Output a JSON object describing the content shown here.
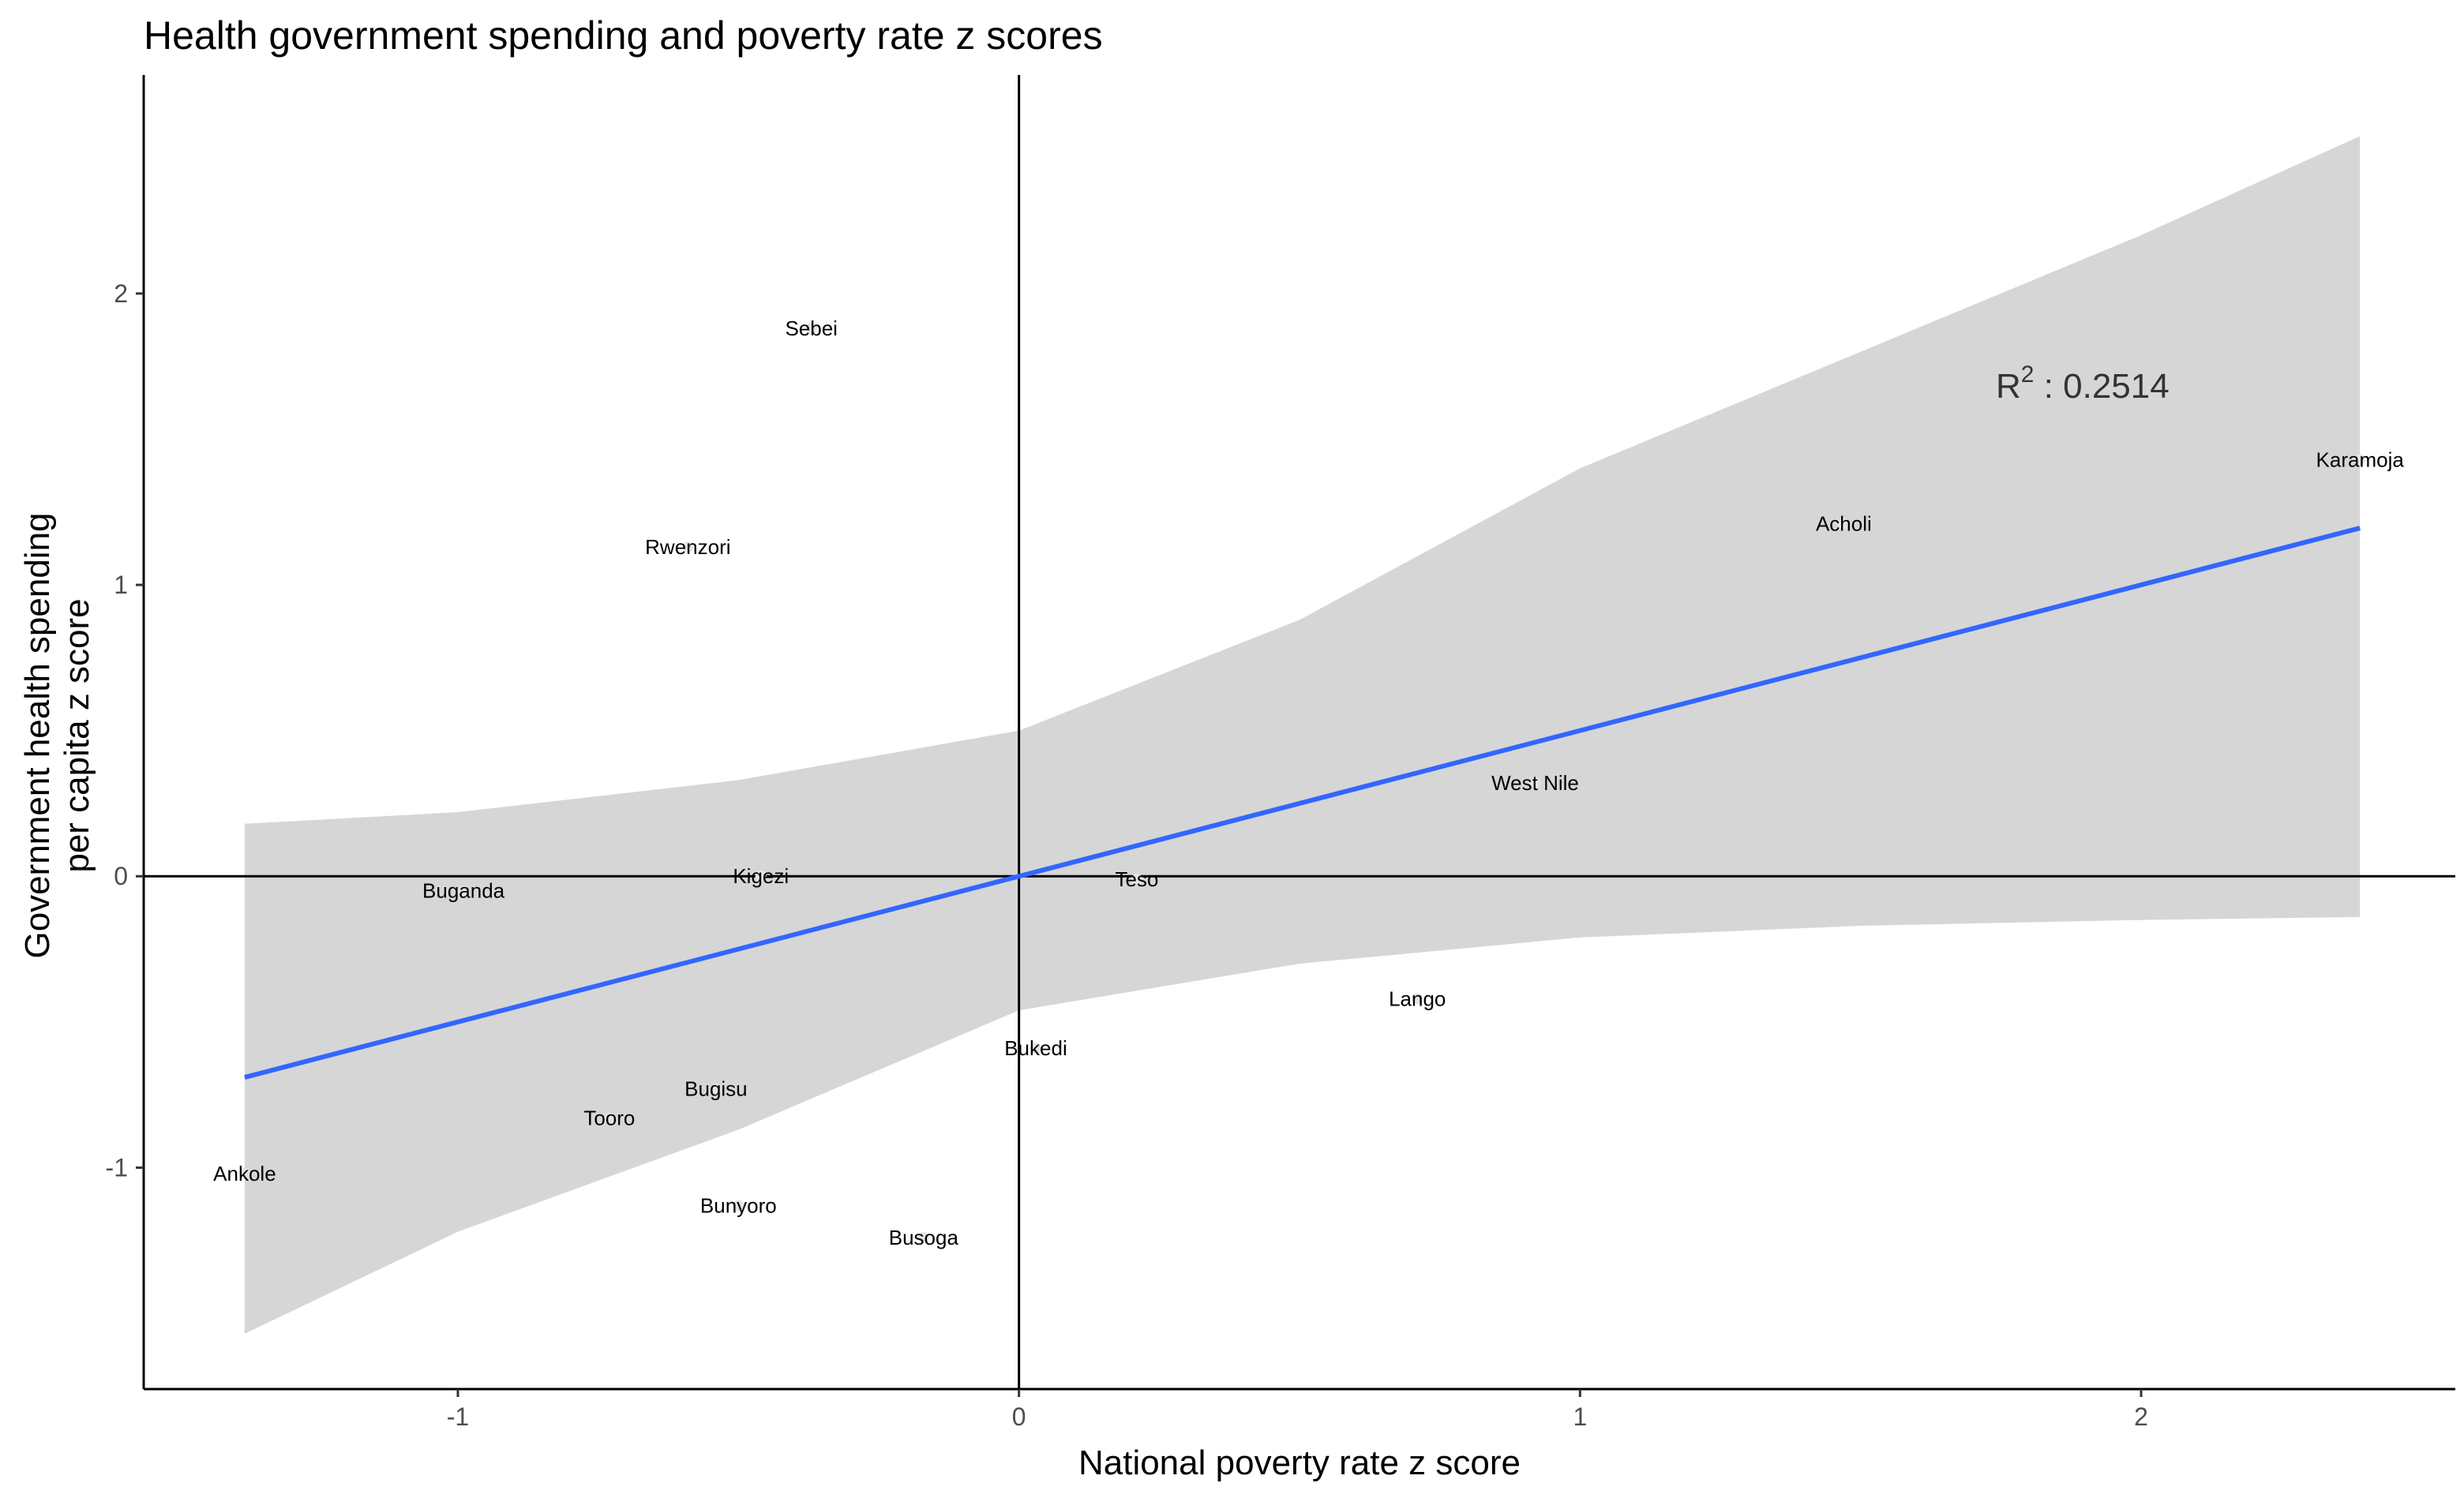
{
  "chart_data": {
    "type": "scatter",
    "title": "Health government spending and poverty rate z scores",
    "xlabel": "National poverty rate z score",
    "ylabel_line1": "Government health spending",
    "ylabel_line2": "per capita z score",
    "xlim": [
      -1.56,
      2.56
    ],
    "ylim": [
      -1.76,
      2.75
    ],
    "x_ticks": [
      -1,
      0,
      1,
      2
    ],
    "x_tick_labels": [
      "-1",
      "0",
      "1",
      "2"
    ],
    "y_ticks": [
      -1,
      0,
      1,
      2
    ],
    "y_tick_labels": [
      "-1",
      "0",
      "1",
      "2"
    ],
    "grid": false,
    "reference_lines": {
      "x": 0,
      "y": 0
    },
    "points": [
      {
        "label": "Sebei",
        "x": -0.37,
        "y": 1.88
      },
      {
        "label": "Rwenzori",
        "x": -0.59,
        "y": 1.13
      },
      {
        "label": "Acholi",
        "x": 1.47,
        "y": 1.21
      },
      {
        "label": "Karamoja",
        "x": 2.39,
        "y": 1.43
      },
      {
        "label": "West Nile",
        "x": 0.92,
        "y": 0.32
      },
      {
        "label": "Buganda",
        "x": -0.99,
        "y": -0.05
      },
      {
        "label": "Kigezi",
        "x": -0.46,
        "y": 0.0
      },
      {
        "label": "Teso",
        "x": 0.21,
        "y": -0.01
      },
      {
        "label": "Lango",
        "x": 0.71,
        "y": -0.42
      },
      {
        "label": "Bukedi",
        "x": 0.03,
        "y": -0.59
      },
      {
        "label": "Bugisu",
        "x": -0.54,
        "y": -0.73
      },
      {
        "label": "Tooro",
        "x": -0.73,
        "y": -0.83
      },
      {
        "label": "Ankole",
        "x": -1.38,
        "y": -1.02
      },
      {
        "label": "Bunyoro",
        "x": -0.5,
        "y": -1.13
      },
      {
        "label": "Busoga",
        "x": -0.17,
        "y": -1.24
      }
    ],
    "regression": {
      "method": "linear",
      "x_range": [
        -1.38,
        2.39
      ],
      "slope": 0.5,
      "intercept": 0.0,
      "r_squared_label": "R",
      "r_squared_superscript": "2",
      "r_squared_value": " : 0.2514",
      "ci_band": [
        {
          "x": -1.38,
          "lower": -1.57,
          "upper": 0.18
        },
        {
          "x": -1.0,
          "lower": -1.22,
          "upper": 0.22
        },
        {
          "x": -0.5,
          "lower": -0.87,
          "upper": 0.33
        },
        {
          "x": 0.0,
          "lower": -0.46,
          "upper": 0.5
        },
        {
          "x": 0.5,
          "lower": -0.3,
          "upper": 0.88
        },
        {
          "x": 1.0,
          "lower": -0.21,
          "upper": 1.4
        },
        {
          "x": 1.5,
          "lower": -0.17,
          "upper": 1.8
        },
        {
          "x": 2.0,
          "lower": -0.15,
          "upper": 2.2
        },
        {
          "x": 2.39,
          "lower": -0.14,
          "upper": 2.54
        }
      ]
    },
    "colors": {
      "line": "#3366FF",
      "band": "#d6d6d6",
      "point": "#e4e4e4",
      "text": "#000000",
      "axis_text": "#4d4d4d"
    }
  }
}
